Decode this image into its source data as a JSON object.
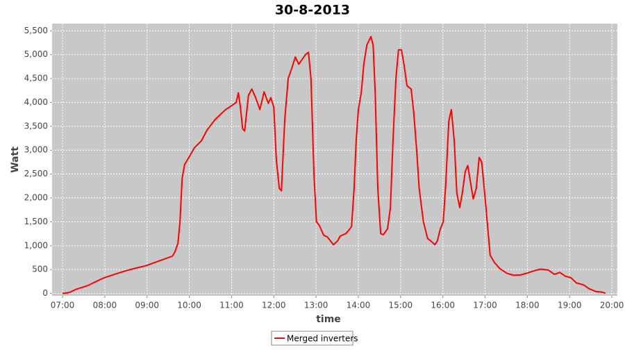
{
  "chart_data": {
    "type": "line",
    "title": "30-8-2013",
    "x_label": "time",
    "y_label": "Watt",
    "series": [
      {
        "name": "Merged inverters",
        "color": "#ff0000",
        "x": [
          7.0,
          7.16,
          7.33,
          7.58,
          7.82,
          7.99,
          8.23,
          8.48,
          8.73,
          8.97,
          9.22,
          9.47,
          9.6,
          9.66,
          9.73,
          9.78,
          9.83,
          9.89,
          9.99,
          10.12,
          10.29,
          10.42,
          10.62,
          10.86,
          11.03,
          11.11,
          11.16,
          11.21,
          11.26,
          11.31,
          11.4,
          11.48,
          11.57,
          11.67,
          11.77,
          11.87,
          11.93,
          12.0,
          12.06,
          12.13,
          12.18,
          12.26,
          12.34,
          12.42,
          12.51,
          12.59,
          12.67,
          12.75,
          12.82,
          12.88,
          12.95,
          13.01,
          13.08,
          13.18,
          13.27,
          13.41,
          13.51,
          13.57,
          13.7,
          13.77,
          13.84,
          13.9,
          13.95,
          14.0,
          14.07,
          14.13,
          14.2,
          14.3,
          14.35,
          14.4,
          14.46,
          14.53,
          14.59,
          14.69,
          14.76,
          14.82,
          14.89,
          14.95,
          15.02,
          15.08,
          15.15,
          15.25,
          15.31,
          15.38,
          15.44,
          15.54,
          15.64,
          15.74,
          15.81,
          15.87,
          15.94,
          16.01,
          16.07,
          16.14,
          16.2,
          16.27,
          16.33,
          16.4,
          16.46,
          16.53,
          16.59,
          16.66,
          16.72,
          16.79,
          16.86,
          16.92,
          16.99,
          17.06,
          17.12,
          17.22,
          17.35,
          17.52,
          17.68,
          17.85,
          18.01,
          18.18,
          18.31,
          18.5,
          18.64,
          18.77,
          18.9,
          19.03,
          19.16,
          19.33,
          19.46,
          19.62,
          19.75,
          19.85
        ],
        "values": [
          0,
          20,
          90,
          160,
          260,
          330,
          400,
          470,
          530,
          580,
          660,
          740,
          780,
          870,
          1050,
          1500,
          2400,
          2700,
          2850,
          3050,
          3200,
          3420,
          3650,
          3850,
          3950,
          4000,
          4200,
          3900,
          3450,
          3400,
          4150,
          4280,
          4100,
          3850,
          4220,
          3980,
          4100,
          3900,
          2800,
          2200,
          2150,
          3650,
          4500,
          4700,
          4950,
          4800,
          4900,
          5000,
          5050,
          4500,
          2500,
          1500,
          1420,
          1220,
          1180,
          1020,
          1100,
          1200,
          1250,
          1320,
          1400,
          2200,
          3200,
          3850,
          4200,
          4800,
          5200,
          5380,
          5200,
          4200,
          2200,
          1250,
          1230,
          1350,
          1800,
          3200,
          4500,
          5100,
          5100,
          4800,
          4350,
          4280,
          3800,
          3000,
          2200,
          1500,
          1150,
          1080,
          1020,
          1100,
          1350,
          1500,
          2300,
          3600,
          3850,
          3200,
          2100,
          1800,
          2100,
          2550,
          2680,
          2300,
          1980,
          2200,
          2850,
          2750,
          2100,
          1400,
          800,
          650,
          520,
          420,
          380,
          390,
          430,
          480,
          510,
          490,
          400,
          440,
          360,
          330,
          220,
          180,
          100,
          40,
          30,
          5
        ]
      }
    ],
    "xlim": [
      6.753,
      20.13
    ],
    "xticks": [
      {
        "value": 7,
        "label": "07:00"
      },
      {
        "value": 8,
        "label": "08:00"
      },
      {
        "value": 9,
        "label": "09:00"
      },
      {
        "value": 10,
        "label": "10:00"
      },
      {
        "value": 11,
        "label": "11:00"
      },
      {
        "value": 12,
        "label": "12:00"
      },
      {
        "value": 13,
        "label": "13:00"
      },
      {
        "value": 14,
        "label": "14:00"
      },
      {
        "value": 15,
        "label": "15:00"
      },
      {
        "value": 16,
        "label": "16:00"
      },
      {
        "value": 17,
        "label": "17:00"
      },
      {
        "value": 18,
        "label": "18:00"
      },
      {
        "value": 19,
        "label": "19:00"
      },
      {
        "value": 20,
        "label": "20:00"
      }
    ],
    "ylim": [
      -50,
      5650
    ],
    "yticks": [
      0,
      500,
      {
        "value": 1000,
        "label": "1,000"
      },
      {
        "value": 1500,
        "label": "1,500"
      },
      {
        "value": 2000,
        "label": "2,000"
      },
      {
        "value": 2500,
        "label": "2,500"
      },
      {
        "value": 3000,
        "label": "3,000"
      },
      {
        "value": 3500,
        "label": "3,500"
      },
      {
        "value": 4000,
        "label": "4,000"
      },
      {
        "value": 4500,
        "label": "4,500"
      },
      {
        "value": 5000,
        "label": "5,000"
      },
      {
        "value": 5500,
        "label": "5,500"
      }
    ],
    "grid": true
  }
}
